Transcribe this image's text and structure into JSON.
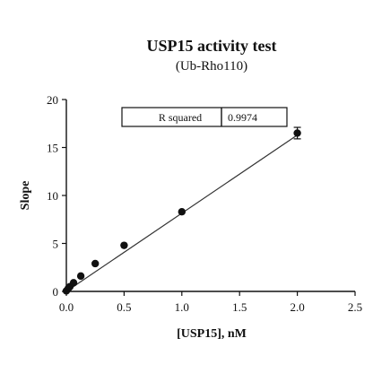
{
  "chart_data": {
    "type": "scatter",
    "title": "USP15 activity test",
    "subtitle": "(Ub-Rho110)",
    "xlabel": "[USP15], nM",
    "ylabel": "Slope",
    "xlim": [
      0,
      2.5
    ],
    "ylim": [
      0,
      20
    ],
    "x_ticks": [
      "0.0",
      "0.5",
      "1.0",
      "1.5",
      "2.0",
      "2.5"
    ],
    "y_ticks": [
      "0",
      "5",
      "10",
      "15",
      "20"
    ],
    "x_tick_values": [
      0,
      0.5,
      1.0,
      1.5,
      2.0,
      2.5
    ],
    "y_tick_values": [
      0,
      5,
      10,
      15,
      20
    ],
    "points": [
      {
        "x": 0.0,
        "y": 0.05,
        "err": 0
      },
      {
        "x": 0.016,
        "y": 0.3,
        "err": 0
      },
      {
        "x": 0.031,
        "y": 0.5,
        "err": 0
      },
      {
        "x": 0.0625,
        "y": 0.9,
        "err": 0
      },
      {
        "x": 0.125,
        "y": 1.6,
        "err": 0
      },
      {
        "x": 0.25,
        "y": 2.9,
        "err": 0
      },
      {
        "x": 0.5,
        "y": 4.8,
        "err": 0
      },
      {
        "x": 1.0,
        "y": 8.3,
        "err": 0
      },
      {
        "x": 2.0,
        "y": 16.5,
        "err": 0.6
      }
    ],
    "fit_line": {
      "x": [
        0,
        2.0
      ],
      "y": [
        0,
        16.3
      ]
    },
    "stats_table": {
      "label": "R squared",
      "value": "0.9974"
    },
    "grid": false,
    "legend": "none"
  }
}
